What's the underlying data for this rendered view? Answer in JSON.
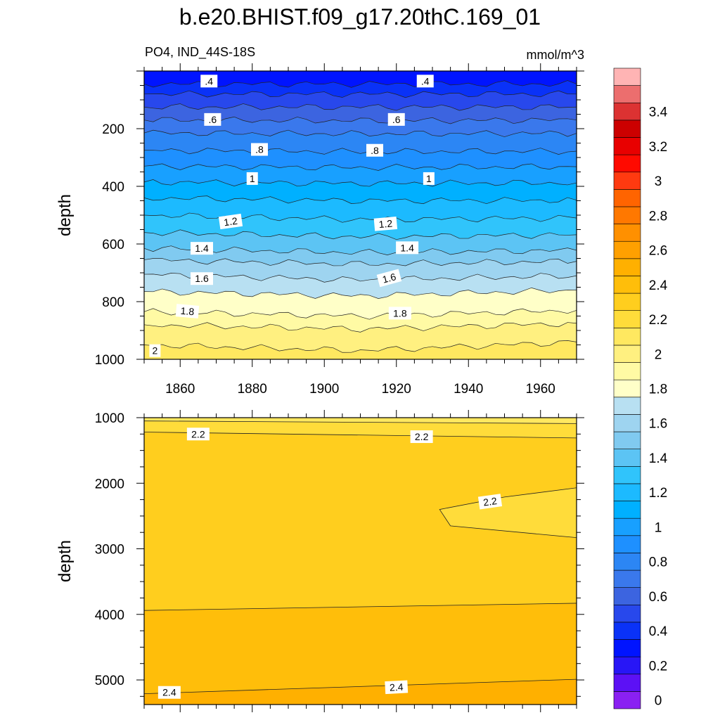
{
  "figure": {
    "title": "b.e20.BHIST.f09_g17.20thC.169_01",
    "left_label": "PO4, IND_44S-18S",
    "right_label": "mmol/m^3"
  },
  "chart_data": [
    {
      "type": "contour",
      "panel": "upper",
      "ylabel": "depth",
      "xlim": [
        1850,
        1970
      ],
      "ylim": [
        1000,
        0
      ],
      "x_ticks": [
        1860,
        1880,
        1900,
        1920,
        1940,
        1960
      ],
      "x_tick_labels": [
        "1860",
        "1880",
        "1900",
        "1920",
        "1940",
        "1960"
      ],
      "y_ticks": [
        200,
        400,
        600,
        800,
        1000
      ],
      "y_tick_labels": [
        "200",
        "400",
        "600",
        "800",
        "1000"
      ],
      "contour_interval": 0.1,
      "contour_lines": [
        {
          "level": 0.3,
          "depth": [
            45,
            45,
            45
          ]
        },
        {
          "level": 0.4,
          "depth": [
            80,
            80,
            80
          ]
        },
        {
          "level": 0.5,
          "depth": [
            125,
            125,
            125
          ]
        },
        {
          "level": 0.6,
          "depth": [
            170,
            172,
            170
          ]
        },
        {
          "level": 0.7,
          "depth": [
            215,
            218,
            216
          ]
        },
        {
          "level": 0.8,
          "depth": [
            275,
            280,
            278
          ]
        },
        {
          "level": 0.9,
          "depth": [
            330,
            335,
            332
          ]
        },
        {
          "level": 1.0,
          "depth": [
            385,
            390,
            388
          ]
        },
        {
          "level": 1.1,
          "depth": [
            440,
            450,
            448
          ]
        },
        {
          "level": 1.2,
          "depth": [
            500,
            515,
            510
          ]
        },
        {
          "level": 1.3,
          "depth": [
            560,
            575,
            568
          ]
        },
        {
          "level": 1.4,
          "depth": [
            615,
            630,
            622
          ]
        },
        {
          "level": 1.5,
          "depth": [
            655,
            670,
            660
          ]
        },
        {
          "level": 1.6,
          "depth": [
            705,
            725,
            710
          ]
        },
        {
          "level": 1.7,
          "depth": [
            765,
            780,
            760
          ]
        },
        {
          "level": 1.8,
          "depth": [
            835,
            850,
            830
          ]
        },
        {
          "level": 1.9,
          "depth": [
            880,
            895,
            875
          ]
        },
        {
          "level": 2.0,
          "depth": [
            950,
            970,
            940
          ]
        }
      ],
      "line_labels": [
        {
          "text": ".4",
          "x": 1868,
          "depth": 35,
          "angle": 0
        },
        {
          "text": ".4",
          "x": 1928,
          "depth": 35,
          "angle": 0
        },
        {
          "text": ".6",
          "x": 1869,
          "depth": 168,
          "angle": 0
        },
        {
          "text": ".6",
          "x": 1920,
          "depth": 168,
          "angle": 0
        },
        {
          "text": ".8",
          "x": 1882,
          "depth": 272,
          "angle": 0
        },
        {
          "text": ".8",
          "x": 1914,
          "depth": 275,
          "angle": 0
        },
        {
          "text": "1",
          "x": 1880,
          "depth": 373,
          "angle": 0
        },
        {
          "text": "1",
          "x": 1929,
          "depth": 373,
          "angle": 0
        },
        {
          "text": "1.2",
          "x": 1874,
          "depth": 522,
          "angle": -8
        },
        {
          "text": "1.2",
          "x": 1917,
          "depth": 530,
          "angle": -5
        },
        {
          "text": "1.4",
          "x": 1866,
          "depth": 615,
          "angle": 0
        },
        {
          "text": "1.4",
          "x": 1923,
          "depth": 613,
          "angle": 0
        },
        {
          "text": "1.6",
          "x": 1866,
          "depth": 720,
          "angle": 0
        },
        {
          "text": "1.6",
          "x": 1918,
          "depth": 718,
          "angle": -15
        },
        {
          "text": "1.8",
          "x": 1862,
          "depth": 833,
          "angle": 5
        },
        {
          "text": "1.8",
          "x": 1921,
          "depth": 840,
          "angle": 0
        },
        {
          "text": "2",
          "x": 1853,
          "depth": 970,
          "angle": 0
        }
      ]
    },
    {
      "type": "contour",
      "panel": "lower",
      "ylabel": "depth",
      "xlim": [
        1850,
        1970
      ],
      "ylim": [
        5375,
        1000
      ],
      "x_ticks": [
        1860,
        1880,
        1900,
        1920,
        1940,
        1960
      ],
      "y_ticks": [
        1000,
        2000,
        3000,
        4000,
        5000
      ],
      "y_tick_labels": [
        "1000",
        "2000",
        "3000",
        "4000",
        "5000"
      ],
      "contour_lines": [
        {
          "level": 2.1,
          "points": [
            [
              1850,
              1050
            ],
            [
              1970,
              1090
            ]
          ]
        },
        {
          "level": 2.2,
          "points": [
            [
              1850,
              1220
            ],
            [
              1970,
              1310
            ]
          ]
        },
        {
          "level": 2.2,
          "points": [
            [
              1970,
              2070
            ],
            [
              1950,
              2210
            ],
            [
              1932,
              2400
            ],
            [
              1935,
              2650
            ],
            [
              1970,
              2830
            ]
          ]
        },
        {
          "level": 2.3,
          "points": [
            [
              1850,
              3940
            ],
            [
              1970,
              3830
            ]
          ]
        },
        {
          "level": 2.4,
          "points": [
            [
              1850,
              5210
            ],
            [
              1970,
              4990
            ]
          ]
        }
      ],
      "line_labels": [
        {
          "text": "2.2",
          "x": 1865,
          "depth": 1250,
          "angle": 0
        },
        {
          "text": "2.2",
          "x": 1927,
          "depth": 1290,
          "angle": 0
        },
        {
          "text": "2.2",
          "x": 1946,
          "depth": 2280,
          "angle": -8
        },
        {
          "text": "2.4",
          "x": 1857,
          "depth": 5190,
          "angle": 0
        },
        {
          "text": "2.4",
          "x": 1920,
          "depth": 5110,
          "angle": -3
        }
      ]
    }
  ],
  "colorbar": {
    "levels": [
      0,
      0.1,
      0.2,
      0.3,
      0.4,
      0.5,
      0.6,
      0.7,
      0.8,
      0.9,
      1.0,
      1.1,
      1.2,
      1.3,
      1.4,
      1.5,
      1.6,
      1.7,
      1.8,
      1.9,
      2.0,
      2.1,
      2.2,
      2.3,
      2.4,
      2.5,
      2.6,
      2.7,
      2.8,
      2.9,
      3.0,
      3.1,
      3.2,
      3.3,
      3.4,
      3.5
    ],
    "colors": [
      "#8a20f2",
      "#5c11f5",
      "#2816f6",
      "#0014ff",
      "#0a32f7",
      "#2848ec",
      "#3c64e0",
      "#3a78ec",
      "#2c86f4",
      "#1e90ff",
      "#18a0ff",
      "#00b0ff",
      "#1cbaff",
      "#30c4fb",
      "#5cc4f4",
      "#80caf0",
      "#9ed4f0",
      "#b8e0f2",
      "#ffffc8",
      "#fffaa4",
      "#fff080",
      "#ffe860",
      "#ffdc3a",
      "#ffce1e",
      "#ffbe0a",
      "#ffb000",
      "#ffa000",
      "#ff9000",
      "#ff7800",
      "#ff6400",
      "#ff3a10",
      "#ff0a00",
      "#e80000",
      "#cc0000",
      "#dc3232",
      "#ec6e6e",
      "#ffb4b4"
    ],
    "tick_labels": [
      "0",
      "0.2",
      "0.4",
      "0.6",
      "0.8",
      "1",
      "1.2",
      "1.4",
      "1.6",
      "1.8",
      "2",
      "2.2",
      "2.4",
      "2.6",
      "2.8",
      "3",
      "3.2",
      "3.4"
    ],
    "tick_values": [
      0,
      0.2,
      0.4,
      0.6,
      0.8,
      1.0,
      1.2,
      1.4,
      1.6,
      1.8,
      2.0,
      2.2,
      2.4,
      2.6,
      2.8,
      3.0,
      3.2,
      3.4
    ]
  }
}
